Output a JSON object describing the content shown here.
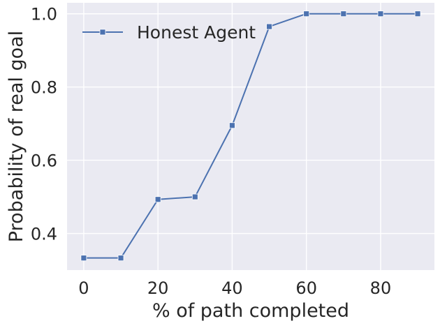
{
  "chart_data": {
    "type": "line",
    "title": "",
    "xlabel": "% of path completed",
    "ylabel": "Probability of real goal",
    "xlim": [
      -4.5,
      94.5
    ],
    "ylim": [
      0.3,
      1.03
    ],
    "xticks": [
      0,
      20,
      40,
      60,
      80
    ],
    "yticks": [
      0.4,
      0.6,
      0.8,
      1.0
    ],
    "ytick_labels": [
      "0.4",
      "0.6",
      "0.8",
      "1.0"
    ],
    "grid": true,
    "legend": "top-left",
    "x": [
      0,
      10,
      20,
      30,
      40,
      50,
      60,
      70,
      80,
      90
    ],
    "series": [
      {
        "name": "Honest Agent",
        "marker": "square",
        "color": "#4c72b0",
        "values": [
          0.333,
          0.333,
          0.493,
          0.5,
          0.695,
          0.965,
          1.0,
          1.0,
          1.0,
          1.0
        ]
      }
    ],
    "colors": {
      "plot_bg": "#eaeaf2",
      "grid": "#ffffff",
      "text": "#262626"
    }
  }
}
